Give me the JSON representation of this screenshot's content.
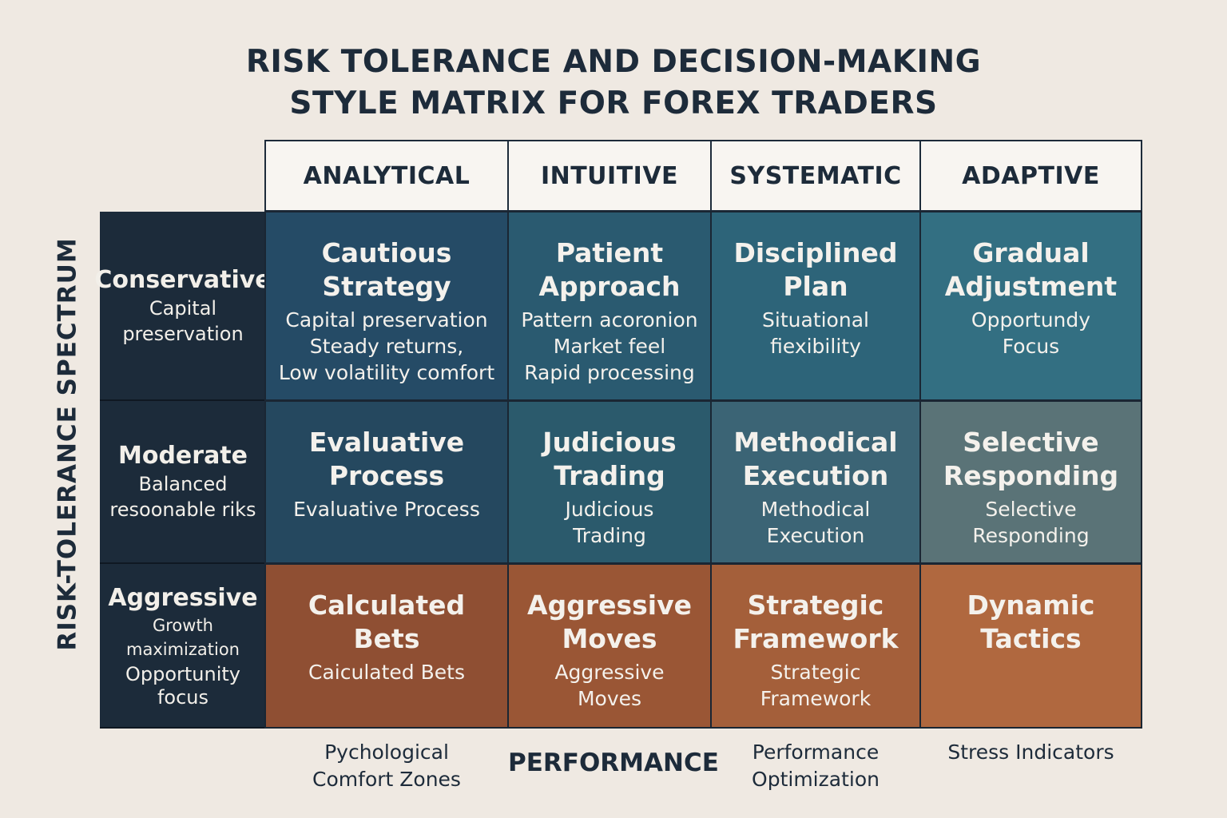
{
  "title": {
    "line1": "RISK TOLERANCE AND DECISION-MAKING",
    "line2": "STYLE MATRIX FOR FOREX TRADERS"
  },
  "y_axis_label": "RISK-TOLERANCE SPECTRUM",
  "columns": [
    "ANALYTICAL",
    "INTUITIVE",
    "SYSTEMATIC",
    "ADAPTIVE"
  ],
  "rows": [
    {
      "label": "Conservative",
      "desc": [
        "Capital",
        "preservation"
      ],
      "cells": [
        {
          "title": [
            "Cautious",
            "Strategy"
          ],
          "desc": [
            "Capital preservation",
            "Steady returns,",
            "Low volatility comfort"
          ],
          "color": "#254b66"
        },
        {
          "title": [
            "Patient",
            "Approach"
          ],
          "desc": [
            "Pattern acoronion",
            "Market feel",
            "Rapid processing"
          ],
          "color": "#2a5a70"
        },
        {
          "title": [
            "Disciplined",
            "Plan"
          ],
          "desc": [
            "Situational",
            "fiexibility"
          ],
          "color": "#2d6479"
        },
        {
          "title": [
            "Gradual",
            "Adjustment"
          ],
          "desc": [
            "Opportundy",
            "Focus"
          ],
          "color": "#336f82"
        }
      ]
    },
    {
      "label": "Moderate",
      "desc": [
        "Balanced",
        "resoonable riks"
      ],
      "cells": [
        {
          "title": [
            "Evaluative",
            "Process"
          ],
          "desc": [
            "Evaluative Process"
          ],
          "color": "#25485f"
        },
        {
          "title": [
            "Judicious",
            "Trading"
          ],
          "desc": [
            "Judicious",
            "Trading"
          ],
          "color": "#2b5a6c"
        },
        {
          "title": [
            "Methodical",
            "Execution"
          ],
          "desc": [
            "Methodical",
            "Execution"
          ],
          "color": "#3b6475"
        },
        {
          "title": [
            "Selective",
            "Responding"
          ],
          "desc": [
            "Selective",
            "Responding"
          ],
          "color": "#5a7377"
        }
      ]
    },
    {
      "label": "Aggressive",
      "desc": [
        "Growth maximization",
        "Opportunity",
        "focus"
      ],
      "cells": [
        {
          "title": [
            "Calculated",
            "Bets"
          ],
          "desc": [
            "Caiculated Bets"
          ],
          "color": "#8f4f33"
        },
        {
          "title": [
            "Aggressive",
            "Moves"
          ],
          "desc": [
            "Aggressive",
            "Moves"
          ],
          "color": "#9a5635"
        },
        {
          "title": [
            "Strategic",
            "Framework"
          ],
          "desc": [
            "Strategic",
            "Framework"
          ],
          "color": "#a45f3a"
        },
        {
          "title": [
            "Dynamic",
            "Tactics"
          ],
          "desc": [],
          "color": "#b0683f"
        }
      ]
    }
  ],
  "footer": [
    {
      "text": [
        "Pychological",
        "Comfort Zones"
      ],
      "bold": false
    },
    {
      "text": [
        "PERFORMANCE"
      ],
      "bold": true
    },
    {
      "text": [
        "Performance",
        "Optimization"
      ],
      "bold": false
    },
    {
      "text": [
        "Stress Indicators"
      ],
      "bold": false
    }
  ]
}
